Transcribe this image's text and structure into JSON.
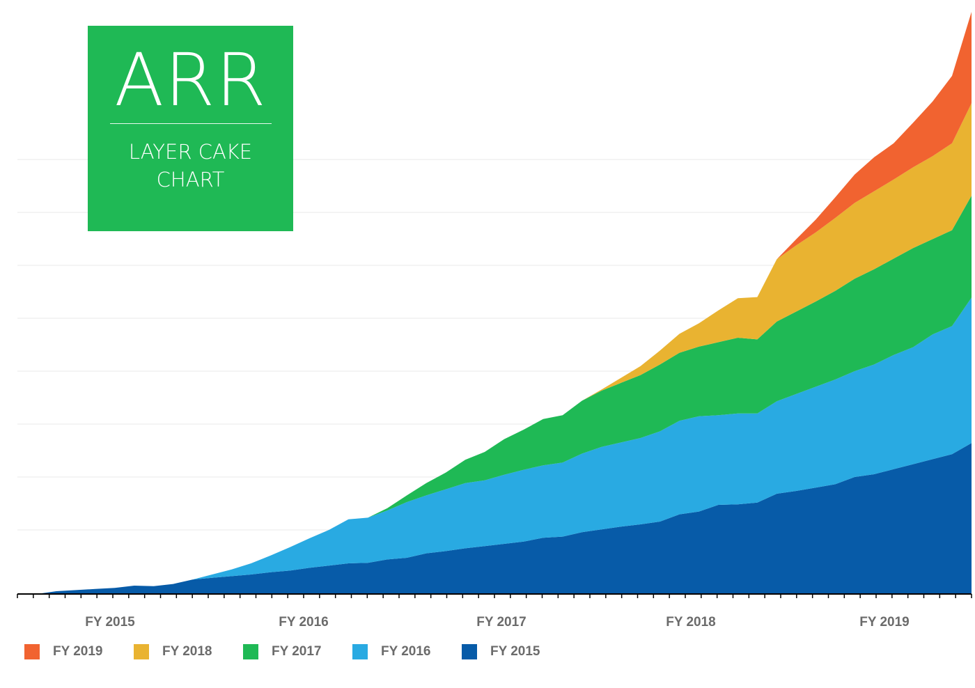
{
  "title": {
    "main": "ARR",
    "subtitle": "LAYER CAKE CHART"
  },
  "chart_data": {
    "type": "area",
    "stacked": true,
    "grid": true,
    "legend_position": "bottom-left",
    "x_tick_labels": [
      "FY 2015",
      "FY 2016",
      "FY 2017",
      "FY 2018",
      "FY 2019"
    ],
    "ylim": [
      0,
      100
    ],
    "series": [
      {
        "name": "FY 2015",
        "color": "#075ba8",
        "values": [
          0,
          0,
          0.5,
          0.7,
          0.9,
          1.1,
          1.5,
          1.4,
          1.8,
          2.6,
          2.9,
          3.2,
          3.5,
          3.9,
          4.2,
          4.7,
          5.1,
          5.5,
          5.6,
          6.2,
          6.5,
          7.3,
          7.7,
          8.2,
          8.6,
          9,
          9.4,
          10.1,
          10.3,
          11.1,
          11.6,
          12.1,
          12.5,
          13,
          14.3,
          14.8,
          16,
          16.1,
          16.4,
          18,
          18.5,
          19.1,
          19.7,
          21,
          21.5,
          22.4,
          23.3,
          24.2,
          25.1,
          27.1
        ]
      },
      {
        "name": "FY 2016",
        "color": "#29aae2",
        "values": [
          0,
          0,
          0,
          0,
          0,
          0,
          0,
          0,
          0,
          0,
          0.6,
          1.2,
          2,
          3,
          4.2,
          5.3,
          6.4,
          7.9,
          8.1,
          8.8,
          10,
          10.4,
          11.1,
          11.7,
          11.8,
          12.4,
          12.9,
          13,
          13.3,
          14.1,
          14.8,
          15.1,
          15.5,
          16.2,
          16.8,
          17.1,
          16.1,
          16.3,
          16,
          16.6,
          17.4,
          18.1,
          18.8,
          19,
          19.7,
          20.5,
          21,
          22.4,
          23,
          26.1
        ]
      },
      {
        "name": "FY 2017",
        "color": "#1fb955",
        "values": [
          0,
          0,
          0,
          0,
          0,
          0,
          0,
          0,
          0,
          0,
          0,
          0,
          0,
          0,
          0,
          0,
          0,
          0,
          0,
          0.4,
          1.2,
          2.2,
          3,
          4.2,
          5.1,
          6.4,
          7.2,
          8.3,
          8.5,
          9.5,
          10.1,
          10.7,
          11.3,
          12,
          12.2,
          12.5,
          13.1,
          13.6,
          13.3,
          14.3,
          14.8,
          15.3,
          15.9,
          16.6,
          17.1,
          17.3,
          17.8,
          17.1,
          17.2,
          18.3
        ]
      },
      {
        "name": "FY 2018",
        "color": "#e9b331",
        "values": [
          0,
          0,
          0,
          0,
          0,
          0,
          0,
          0,
          0,
          0,
          0,
          0,
          0,
          0,
          0,
          0,
          0,
          0,
          0,
          0,
          0,
          0,
          0,
          0,
          0,
          0,
          0,
          0,
          0,
          0,
          0.2,
          0.9,
          1.6,
          2.5,
          3.4,
          4.2,
          5.7,
          7.1,
          7.6,
          11.2,
          11.9,
          12.4,
          13.1,
          13.6,
          14,
          14.2,
          14.5,
          14.9,
          15.6,
          16.6
        ]
      },
      {
        "name": "FY 2019",
        "color": "#f16330",
        "values": [
          0,
          0,
          0,
          0,
          0,
          0,
          0,
          0,
          0,
          0,
          0,
          0,
          0,
          0,
          0,
          0,
          0,
          0,
          0,
          0,
          0,
          0,
          0,
          0,
          0,
          0,
          0,
          0,
          0,
          0,
          0,
          0,
          0,
          0,
          0,
          0,
          0,
          0,
          0,
          0,
          1.1,
          2.3,
          3.7,
          5.1,
          6.1,
          6.5,
          8,
          9.8,
          12.1,
          16.4
        ]
      }
    ]
  }
}
